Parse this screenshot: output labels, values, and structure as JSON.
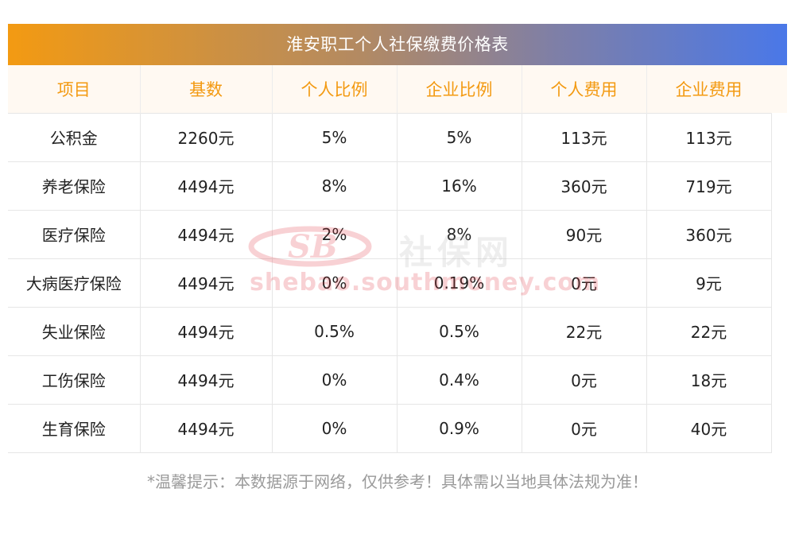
{
  "title": "淮安职工个人社保缴费价格表",
  "columns": [
    "项目",
    "基数",
    "个人比例",
    "企业比例",
    "个人费用",
    "企业费用"
  ],
  "rows": [
    [
      "公积金",
      "2260元",
      "5%",
      "5%",
      "113元",
      "113元"
    ],
    [
      "养老保险",
      "4494元",
      "8%",
      "16%",
      "360元",
      "719元"
    ],
    [
      "医疗保险",
      "4494元",
      "2%",
      "8%",
      "90元",
      "360元"
    ],
    [
      "大病医疗保险",
      "4494元",
      "0%",
      "0.19%",
      "0元",
      "9元"
    ],
    [
      "失业保险",
      "4494元",
      "0.5%",
      "0.5%",
      "22元",
      "22元"
    ],
    [
      "工伤保险",
      "4494元",
      "0%",
      "0.4%",
      "0元",
      "18元"
    ],
    [
      "生育保险",
      "4494元",
      "0%",
      "0.9%",
      "0元",
      "40元"
    ]
  ],
  "footnote": "*温馨提示：本数据源于网络，仅供参考！具体需以当地具体法规为准！",
  "watermark": {
    "logo_text": "SB",
    "cn_text": "社保网",
    "url_text": "shebao.southmoney.com"
  },
  "colors": {
    "title_gradient_start": "#f39a12",
    "title_gradient_end": "#4a78e8",
    "header_text": "#f39a12",
    "header_bg": "#fff9f2",
    "body_text": "#222222",
    "footnote_text": "#9a9a9a"
  }
}
